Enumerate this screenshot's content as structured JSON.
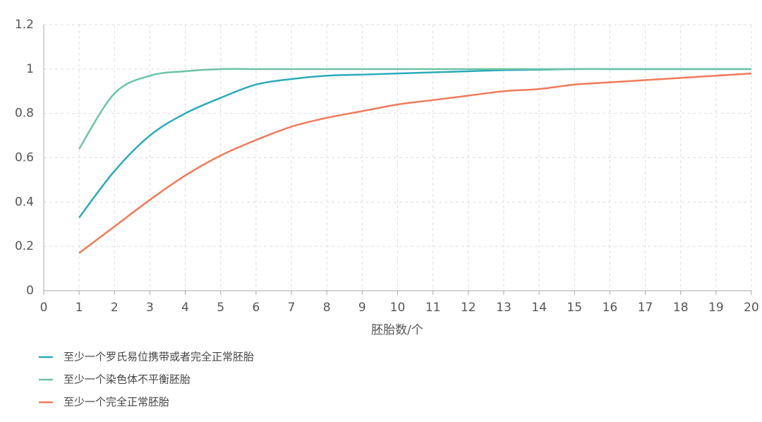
{
  "chart_data": {
    "type": "line",
    "x_label": "胚胎数/个",
    "x": [
      1,
      2,
      3,
      4,
      5,
      6,
      7,
      8,
      9,
      10,
      11,
      12,
      13,
      14,
      15,
      16,
      17,
      18,
      19,
      20
    ],
    "series": [
      {
        "name": "至少一个罗氏易位携带或者完全正常胚胎",
        "color": "#2aaabb",
        "values": [
          0.33,
          0.54,
          0.7,
          0.8,
          0.87,
          0.93,
          0.955,
          0.97,
          0.975,
          0.98,
          0.985,
          0.99,
          0.995,
          0.997,
          1,
          1,
          1,
          1,
          1,
          1
        ]
      },
      {
        "name": "至少一个染色体不平衡胚胎",
        "color": "#6cc3a8",
        "values": [
          0.64,
          0.89,
          0.97,
          0.99,
          1,
          1,
          1,
          1,
          1,
          1,
          1,
          1,
          1,
          1,
          1,
          1,
          1,
          1,
          1,
          1
        ]
      },
      {
        "name": "至少一个完全正常胚胎",
        "color": "#f07a5a",
        "values": [
          0.17,
          0.29,
          0.41,
          0.52,
          0.61,
          0.68,
          0.74,
          0.78,
          0.81,
          0.84,
          0.86,
          0.88,
          0.9,
          0.91,
          0.93,
          0.94,
          0.95,
          0.96,
          0.97,
          0.98
        ]
      }
    ],
    "xlim": [
      0,
      20
    ],
    "xticks": [
      0,
      1,
      2,
      3,
      4,
      5,
      6,
      7,
      8,
      9,
      10,
      11,
      12,
      13,
      14,
      15,
      16,
      17,
      18,
      19,
      20
    ],
    "ylim": [
      0,
      1.2
    ],
    "yticks": [
      0,
      0.2,
      0.4,
      0.6,
      0.8,
      1,
      1.2
    ],
    "grid": true
  }
}
